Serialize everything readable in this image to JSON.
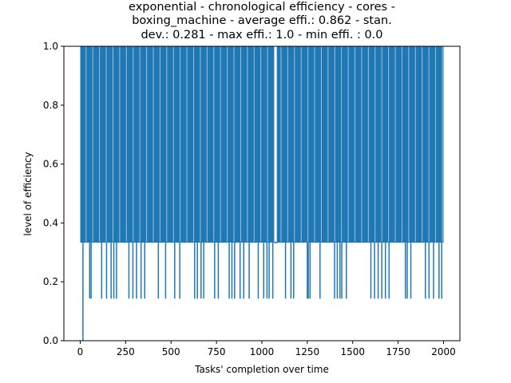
{
  "chart_data": {
    "type": "line",
    "title_lines": [
      "exponential - chronological efficiency - cores -",
      "boxing_machine - average effi.: 0.862 - stan.",
      "dev.: 0.281 - max effi.: 1.0 - min effi. : 0.0"
    ],
    "xlabel": "Tasks' completion over time",
    "ylabel": "level of efficiency",
    "xlim": [
      -90,
      2090
    ],
    "ylim": [
      0,
      1.0
    ],
    "x_ticks": [
      0,
      250,
      500,
      750,
      1000,
      1250,
      1500,
      1750,
      2000
    ],
    "x_tick_labels": [
      "0",
      "250",
      "500",
      "750",
      "1000",
      "1250",
      "1500",
      "1750",
      "2000"
    ],
    "y_ticks": [
      0.0,
      0.2,
      0.4,
      0.6,
      0.8,
      1.0
    ],
    "y_tick_labels": [
      "0.0",
      "0.2",
      "0.4",
      "0.6",
      "0.8",
      "1.0"
    ],
    "grid": false,
    "series_color": "#1f77b4",
    "levels": [
      0.0,
      0.143,
      0.333,
      1.0
    ],
    "x_first": 0,
    "x_last": 2000,
    "drops_to_zero_at": [
      15
    ],
    "dips_to_0_143_at": [
      52,
      60,
      118,
      145,
      170,
      185,
      200,
      268,
      290,
      310,
      335,
      355,
      430,
      470,
      520,
      548,
      630,
      645,
      665,
      680,
      740,
      760,
      820,
      835,
      850,
      880,
      900,
      930,
      980,
      1010,
      1028,
      1040,
      1060,
      1130,
      1160,
      1175,
      1250,
      1255,
      1265,
      1320,
      1400,
      1415,
      1430,
      1440,
      1465,
      1600,
      1620,
      1640,
      1660,
      1680,
      1700,
      1790,
      1800,
      1820,
      1900,
      1920,
      1945,
      1975,
      1990
    ],
    "stays_at_0_333_ranges": [
      [
        1070,
        1082
      ]
    ]
  }
}
